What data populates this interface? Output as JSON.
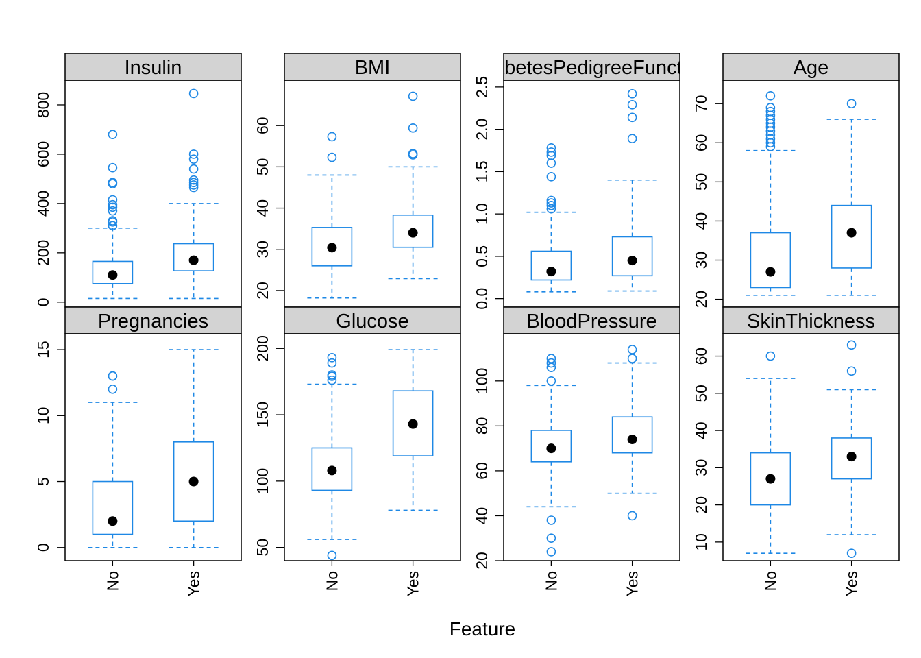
{
  "chart_data": {
    "type": "box",
    "xlabel": "Feature",
    "categories": [
      "No",
      "Yes"
    ],
    "box_color": "#1E88E5",
    "median_color": "#000000",
    "strip_color": "#D3D3D3",
    "panels": [
      {
        "title": "Insulin",
        "ylim": [
          -20,
          900
        ],
        "yticks": [
          0,
          200,
          400,
          600,
          800
        ],
        "groups": [
          {
            "category": "No",
            "whisker_low": 15,
            "q1": 75,
            "median": 110,
            "q3": 165,
            "whisker_high": 300,
            "outliers": [
              310,
              325,
              330,
              370,
              385,
              395,
              415,
              480,
              485,
              545,
              680
            ]
          },
          {
            "category": "Yes",
            "whisker_low": 15,
            "q1": 127,
            "median": 170,
            "q3": 237,
            "whisker_high": 400,
            "outliers": [
              465,
              475,
              485,
              495,
              540,
              580,
              600,
              846
            ]
          }
        ]
      },
      {
        "title": "BMI",
        "ylim": [
          16,
          71
        ],
        "yticks": [
          20,
          30,
          40,
          50,
          60
        ],
        "groups": [
          {
            "category": "No",
            "whisker_low": 18.2,
            "q1": 26,
            "median": 30.4,
            "q3": 35.3,
            "whisker_high": 48,
            "outliers": [
              52.3,
              57.3
            ]
          },
          {
            "category": "Yes",
            "whisker_low": 22.9,
            "q1": 30.5,
            "median": 34,
            "q3": 38.3,
            "whisker_high": 50,
            "outliers": [
              52.9,
              53.2,
              59.4,
              67.1
            ]
          }
        ]
      },
      {
        "title": "DiabetesPedigreeFunction",
        "ylim": [
          -0.1,
          2.58
        ],
        "yticks": [
          0.0,
          0.5,
          1.0,
          1.5,
          2.0,
          2.5
        ],
        "groups": [
          {
            "category": "No",
            "whisker_low": 0.08,
            "q1": 0.22,
            "median": 0.32,
            "q3": 0.56,
            "whisker_high": 1.02,
            "outliers": [
              1.06,
              1.1,
              1.13,
              1.16,
              1.44,
              1.6,
              1.69,
              1.73,
              1.78
            ]
          },
          {
            "category": "Yes",
            "whisker_low": 0.09,
            "q1": 0.27,
            "median": 0.45,
            "q3": 0.73,
            "whisker_high": 1.4,
            "outliers": [
              1.89,
              2.14,
              2.29,
              2.42
            ]
          }
        ]
      },
      {
        "title": "Age",
        "ylim": [
          18,
          76
        ],
        "yticks": [
          20,
          30,
          40,
          50,
          60,
          70
        ],
        "groups": [
          {
            "category": "No",
            "whisker_low": 21,
            "q1": 23,
            "median": 27,
            "q3": 37,
            "whisker_high": 58,
            "outliers": [
              59,
              60,
              61,
              62,
              63,
              64,
              65,
              66,
              67,
              68,
              69,
              72
            ]
          },
          {
            "category": "Yes",
            "whisker_low": 21,
            "q1": 28,
            "median": 37,
            "q3": 44,
            "whisker_high": 66,
            "outliers": [
              70
            ]
          }
        ]
      },
      {
        "title": "Pregnancies",
        "ylim": [
          -1,
          16.2
        ],
        "yticks": [
          0,
          5,
          10,
          15
        ],
        "groups": [
          {
            "category": "No",
            "whisker_low": 0,
            "q1": 1,
            "median": 2,
            "q3": 5,
            "whisker_high": 11,
            "outliers": [
              12,
              13,
              13
            ]
          },
          {
            "category": "Yes",
            "whisker_low": 0,
            "q1": 2,
            "median": 5,
            "q3": 8,
            "whisker_high": 15,
            "outliers": []
          }
        ]
      },
      {
        "title": "Glucose",
        "ylim": [
          40,
          211
        ],
        "yticks": [
          50,
          100,
          150,
          200
        ],
        "groups": [
          {
            "category": "No",
            "whisker_low": 56,
            "q1": 93,
            "median": 108,
            "q3": 125,
            "whisker_high": 173,
            "outliers": [
              44,
              176,
              179,
              180,
              189,
              193
            ]
          },
          {
            "category": "Yes",
            "whisker_low": 78,
            "q1": 119,
            "median": 143,
            "q3": 168,
            "whisker_high": 199,
            "outliers": []
          }
        ]
      },
      {
        "title": "BloodPressure",
        "ylim": [
          20,
          121
        ],
        "yticks": [
          20,
          40,
          60,
          80,
          100
        ],
        "groups": [
          {
            "category": "No",
            "whisker_low": 44,
            "q1": 64,
            "median": 70,
            "q3": 78,
            "whisker_high": 98,
            "outliers": [
              24,
              30,
              38,
              100,
              106,
              108,
              110
            ]
          },
          {
            "category": "Yes",
            "whisker_low": 50,
            "q1": 68,
            "median": 74,
            "q3": 84,
            "whisker_high": 108,
            "outliers": [
              40,
              110,
              114
            ]
          }
        ]
      },
      {
        "title": "SkinThickness",
        "ylim": [
          5,
          66
        ],
        "yticks": [
          10,
          20,
          30,
          40,
          50,
          60
        ],
        "groups": [
          {
            "category": "No",
            "whisker_low": 7,
            "q1": 20,
            "median": 27,
            "q3": 34,
            "whisker_high": 54,
            "outliers": [
              60
            ]
          },
          {
            "category": "Yes",
            "whisker_low": 12,
            "q1": 27,
            "median": 33,
            "q3": 38,
            "whisker_high": 51,
            "outliers": [
              7,
              56,
              63
            ]
          }
        ]
      }
    ]
  }
}
